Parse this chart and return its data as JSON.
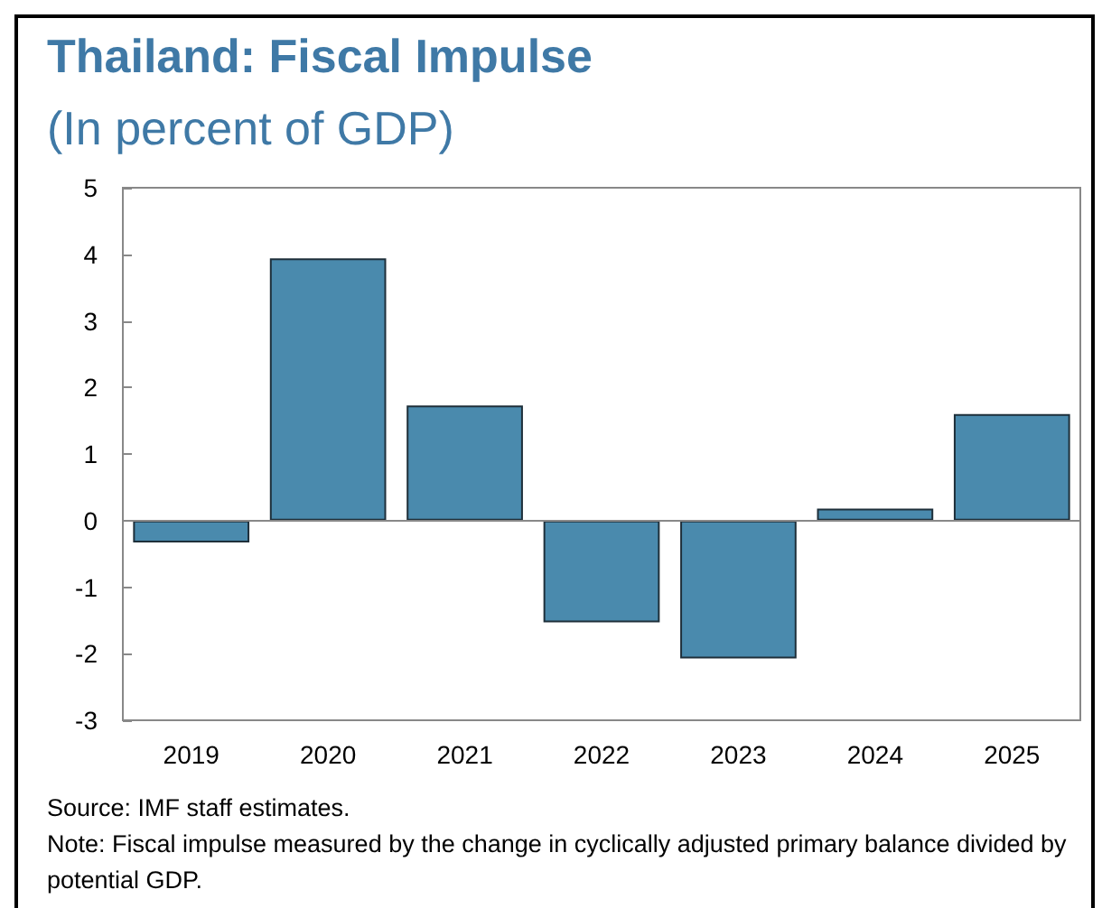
{
  "chart_data": {
    "type": "bar",
    "title": "Thailand: Fiscal Impulse",
    "subtitle": "(In percent of GDP)",
    "categories": [
      "2019",
      "2020",
      "2021",
      "2022",
      "2023",
      "2024",
      "2025"
    ],
    "values": [
      -0.33,
      3.94,
      1.73,
      -1.53,
      -2.07,
      0.18,
      1.6
    ],
    "color": "#4a8aad",
    "ylim": [
      -3,
      5
    ],
    "yticks": [
      -3,
      -2,
      -1,
      0,
      1,
      2,
      3,
      4,
      5
    ],
    "grid": false,
    "ref_lines": [
      {
        "axis": "y",
        "value": 0,
        "color": "#888888"
      }
    ],
    "annotations": [
      "Source: IMF staff estimates.",
      "Note: Fiscal impulse measured by the change in cyclically adjusted primary balance divided by potential GDP."
    ]
  }
}
